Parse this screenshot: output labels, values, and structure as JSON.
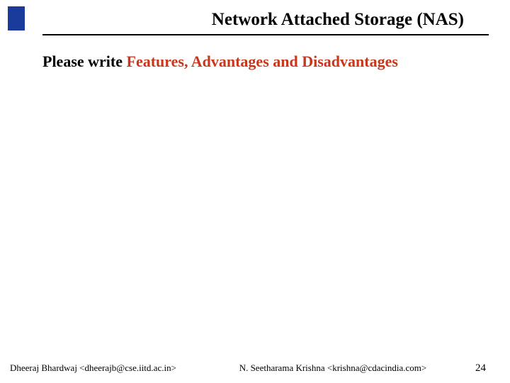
{
  "accent_color": "#1a3a9c",
  "heading_color": "#c8361c",
  "title": "Network Attached Storage (NAS)",
  "body": {
    "prefix": "Please write ",
    "highlight": "Features, Advantages and Disadvantages"
  },
  "footer": {
    "left": "Dheeraj Bhardwaj <dheerajb@cse.iitd.ac.in>",
    "center": "N. Seetharama Krishna <krishna@cdacindia.com>",
    "page": "24"
  }
}
